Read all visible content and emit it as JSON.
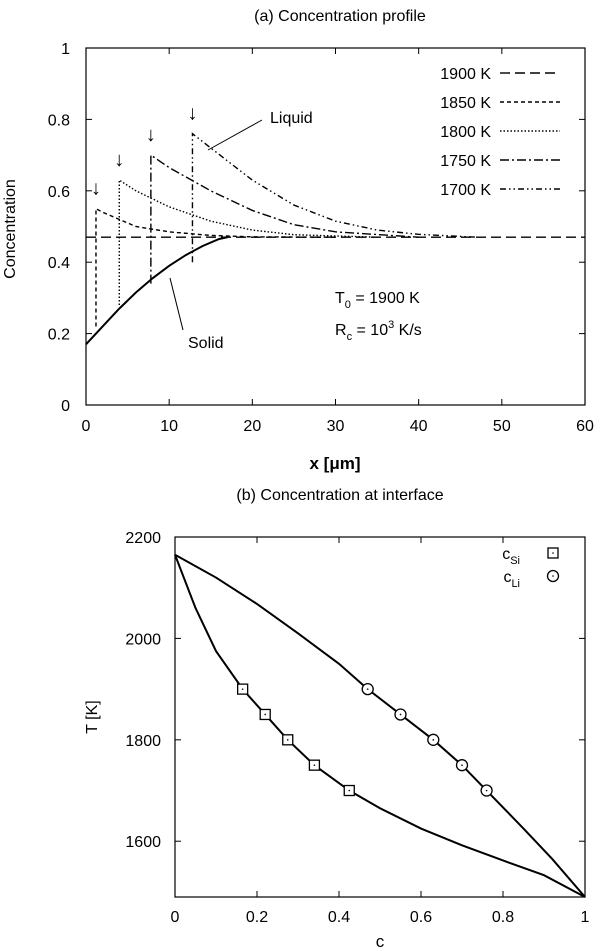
{
  "chart_data": [
    {
      "type": "line",
      "title": "(a) Concentration profile",
      "xlabel": "x [μm]",
      "ylabel": "Concentration",
      "xlim": [
        0,
        60
      ],
      "ylim": [
        0,
        1
      ],
      "xticks": [
        "0",
        "10",
        "20",
        "30",
        "40",
        "50",
        "60"
      ],
      "yticks": [
        "0",
        "0.2",
        "0.4",
        "0.6",
        "0.8",
        "1"
      ],
      "grid": false,
      "legend_position": "top-right",
      "legend": [
        "1900 K",
        "1850 K",
        "1800 K",
        "1750 K",
        "1700 K"
      ],
      "annotations": {
        "liquid": "Liquid",
        "solid": "Solid",
        "t0_main": "T",
        "t0_sub": "0",
        "t0_rest": " = 1900 K",
        "rc_main": "R",
        "rc_sub": "c",
        "rc_mid": " = 10",
        "rc_sup": "3",
        "rc_rest": " K/s",
        "arrow": "↓"
      },
      "series": [
        {
          "name": "1900 K",
          "style": "long-dash",
          "x": [
            0,
            60
          ],
          "y": [
            0.47,
            0.47
          ]
        },
        {
          "name": "1850 K",
          "style": "short-dash",
          "x": [
            1.2,
            1.2,
            2,
            4,
            6,
            10,
            15,
            20,
            30
          ],
          "y": [
            0.22,
            0.55,
            0.54,
            0.52,
            0.5,
            0.485,
            0.475,
            0.471,
            0.47
          ]
        },
        {
          "name": "1800 K",
          "style": "dotted",
          "x": [
            4,
            4,
            6,
            10,
            15,
            20,
            25,
            35
          ],
          "y": [
            0.28,
            0.63,
            0.6,
            0.555,
            0.515,
            0.49,
            0.477,
            0.47
          ]
        },
        {
          "name": "1750 K",
          "style": "dash-dot",
          "x": [
            7.8,
            7.8,
            10,
            15,
            20,
            25,
            30,
            40
          ],
          "y": [
            0.34,
            0.7,
            0.665,
            0.6,
            0.545,
            0.505,
            0.485,
            0.47
          ]
        },
        {
          "name": "1700 K",
          "style": "dash-dot-dot",
          "x": [
            12.8,
            12.8,
            15,
            20,
            25,
            30,
            35,
            40,
            47
          ],
          "y": [
            0.4,
            0.76,
            0.72,
            0.63,
            0.56,
            0.515,
            0.49,
            0.478,
            0.47
          ]
        },
        {
          "name": "Solid",
          "style": "solid",
          "x": [
            0,
            2,
            4,
            6,
            8,
            10,
            12,
            14,
            16,
            17
          ],
          "y": [
            0.17,
            0.22,
            0.27,
            0.315,
            0.355,
            0.39,
            0.42,
            0.445,
            0.465,
            0.47
          ]
        }
      ],
      "arrows_x": [
        1.2,
        4,
        7.8,
        12.8
      ]
    },
    {
      "type": "scatter",
      "title": "(b) Concentration at interface",
      "xlabel": "c",
      "ylabel": "T [K]",
      "xlim": [
        0,
        1
      ],
      "ylim": [
        1490,
        2200
      ],
      "xticks": [
        "0",
        "0.2",
        "0.4",
        "0.6",
        "0.8",
        "1"
      ],
      "yticks": [
        "1600",
        "1800",
        "2000",
        "2200"
      ],
      "grid": false,
      "legend_position": "top-right",
      "series": [
        {
          "name": "c_Si",
          "label_main": "c",
          "label_sub": "Si",
          "marker": "square",
          "x": [
            0.165,
            0.22,
            0.275,
            0.34,
            0.425
          ],
          "y": [
            1900,
            1850,
            1800,
            1750,
            1700
          ]
        },
        {
          "name": "c_Li",
          "label_main": "c",
          "label_sub": "Li",
          "marker": "circle",
          "x": [
            0.47,
            0.55,
            0.63,
            0.7,
            0.76
          ],
          "y": [
            1900,
            1850,
            1800,
            1750,
            1700
          ]
        }
      ],
      "curves": [
        {
          "name": "solidus",
          "x": [
            0,
            0.05,
            0.1,
            0.165,
            0.22,
            0.275,
            0.34,
            0.425,
            0.5,
            0.6,
            0.7,
            0.8,
            0.9,
            1
          ],
          "y": [
            2165,
            2060,
            1975,
            1900,
            1850,
            1800,
            1750,
            1700,
            1665,
            1625,
            1592,
            1562,
            1533,
            1490
          ]
        },
        {
          "name": "liquidus",
          "x": [
            0,
            0.1,
            0.2,
            0.3,
            0.4,
            0.47,
            0.55,
            0.63,
            0.7,
            0.76,
            0.85,
            0.92,
            1
          ],
          "y": [
            2165,
            2120,
            2068,
            2010,
            1950,
            1900,
            1850,
            1800,
            1750,
            1700,
            1625,
            1565,
            1490
          ]
        }
      ]
    }
  ]
}
